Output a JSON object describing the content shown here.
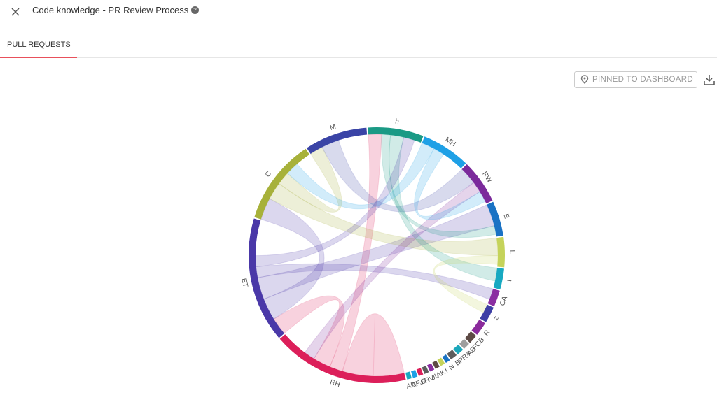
{
  "header": {
    "title": "Code knowledge - PR Review Process"
  },
  "tabs": [
    "PULL REQUESTS"
  ],
  "actions": {
    "pinned": "PINNED TO DASHBOARD"
  },
  "chart_data": {
    "type": "chord",
    "groups": [
      {
        "name": "h",
        "color": "#1a9a85",
        "value": 24
      },
      {
        "name": "MH",
        "color": "#1ea0e6",
        "value": 21
      },
      {
        "name": "RW",
        "color": "#7b2a9b",
        "value": 19
      },
      {
        "name": "E",
        "color": "#1a72c4",
        "value": 15
      },
      {
        "name": "L",
        "color": "#c5d35a",
        "value": 13
      },
      {
        "name": "t",
        "color": "#17a9c1",
        "value": 9
      },
      {
        "name": "CA",
        "color": "#8a2ea1",
        "value": 7
      },
      {
        "name": "z",
        "color": "#3d3fa4",
        "value": 7
      },
      {
        "name": "R",
        "color": "#8b2a9c",
        "value": 6
      },
      {
        "name": "FCB",
        "color": "#5d4a44",
        "value": 4
      },
      {
        "name": "AB",
        "color": "#9e9e9e",
        "value": 3
      },
      {
        "name": "PRA",
        "color": "#1ba7bb",
        "value": 3
      },
      {
        "name": "B",
        "color": "#5d5d5d",
        "value": 3
      },
      {
        "name": "N",
        "color": "#1a72c4",
        "value": 2
      },
      {
        "name": "I",
        "color": "#c5d35a",
        "value": 2
      },
      {
        "name": "AK",
        "color": "#5d4a44",
        "value": 2
      },
      {
        "name": "JL",
        "color": "#8a2ea1",
        "value": 2
      },
      {
        "name": "RV",
        "color": "#5d5d5d",
        "value": 2
      },
      {
        "name": "G",
        "color": "#dc1f5a",
        "value": 2
      },
      {
        "name": "AFJ",
        "color": "#1ea0e6",
        "value": 2
      },
      {
        "name": "AD",
        "color": "#17a9c1",
        "value": 2
      },
      {
        "name": "RH",
        "color": "#dc1f5a",
        "value": 59
      },
      {
        "name": "ET",
        "color": "#4a38a8",
        "value": 54
      },
      {
        "name": "C",
        "color": "#a7b13a",
        "value": 37
      },
      {
        "name": "M",
        "color": "#3a44a6",
        "value": 27
      }
    ],
    "links": [
      {
        "source": "RH",
        "target": "RH",
        "value": 14
      },
      {
        "source": "RH",
        "target": "h",
        "value": 6
      },
      {
        "source": "RH",
        "target": "ET",
        "value": 8
      },
      {
        "source": "ET",
        "target": "C",
        "value": 10
      },
      {
        "source": "ET",
        "target": "E",
        "value": 10
      },
      {
        "source": "ET",
        "target": "CA",
        "value": 5
      },
      {
        "source": "C",
        "target": "L",
        "value": 8
      },
      {
        "source": "C",
        "target": "M",
        "value": 6
      },
      {
        "source": "M",
        "target": "RW",
        "value": 8
      },
      {
        "source": "h",
        "target": "E",
        "value": 4
      },
      {
        "source": "h",
        "target": "t",
        "value": 6
      },
      {
        "source": "MH",
        "target": "C",
        "value": 6
      },
      {
        "source": "ET",
        "target": "h",
        "value": 5
      },
      {
        "source": "RW",
        "target": "RH",
        "value": 5
      },
      {
        "source": "L",
        "target": "z",
        "value": 4
      },
      {
        "source": "MH",
        "target": "RW",
        "value": 5
      }
    ]
  }
}
